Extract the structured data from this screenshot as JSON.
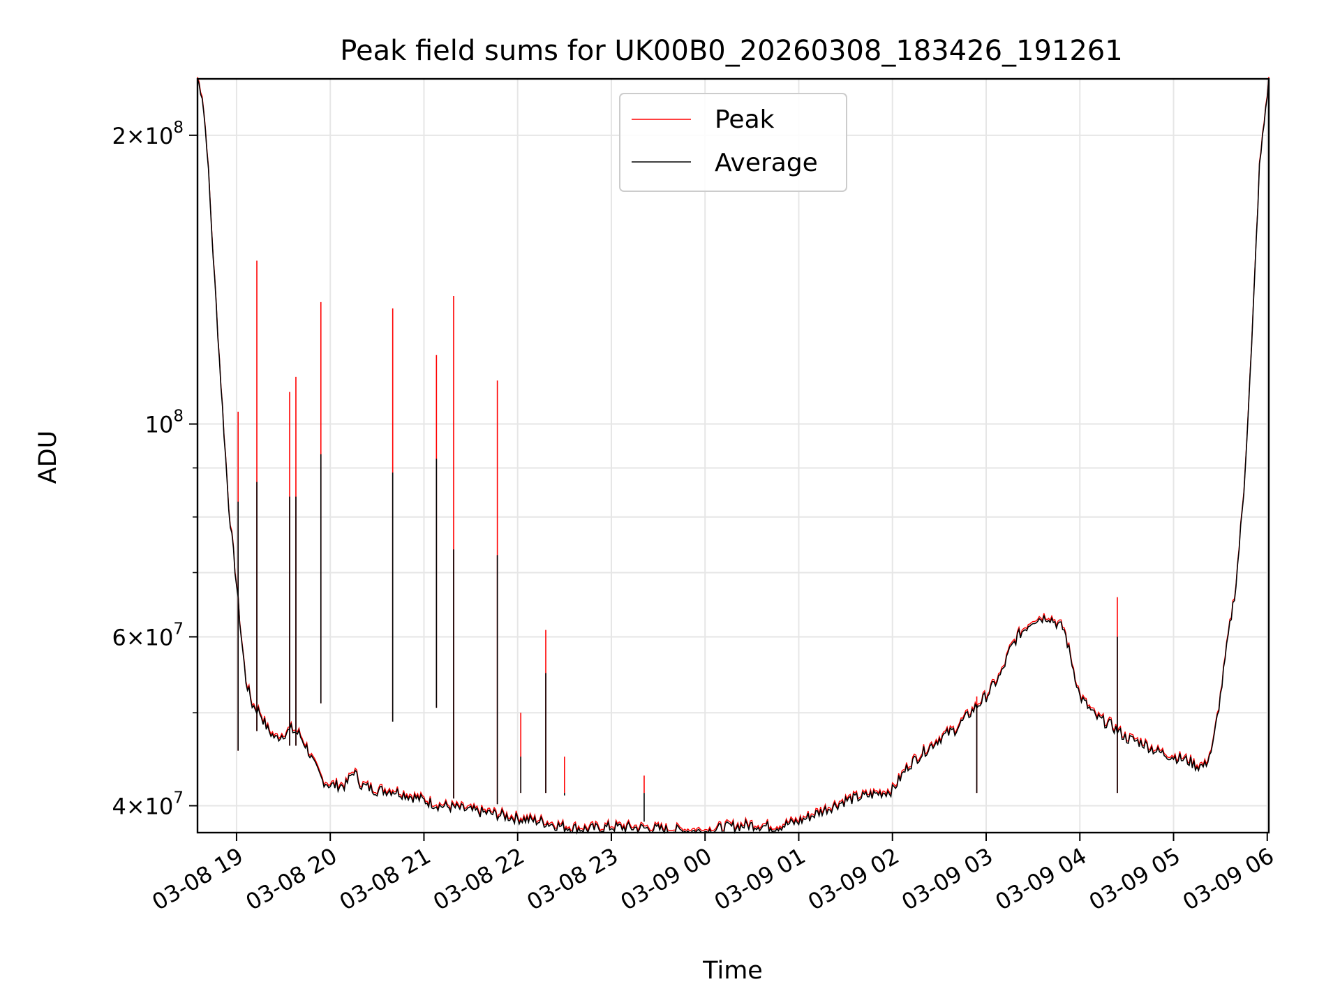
{
  "chart_data": {
    "type": "line",
    "title": "Peak field sums for UK00B0_20260308_183426_191261",
    "xlabel": "Time",
    "ylabel": "ADU",
    "yscale": "log",
    "grid": true,
    "legend_placement": "upper-center",
    "xlim": [
      "2026-03-08 18:35",
      "2026-03-09 06:01"
    ],
    "ylim": [
      37500000,
      229000000
    ],
    "x_ticks": [
      {
        "value": "2026-03-08 19:00",
        "label": "03-08 19"
      },
      {
        "value": "2026-03-08 20:00",
        "label": "03-08 20"
      },
      {
        "value": "2026-03-08 21:00",
        "label": "03-08 21"
      },
      {
        "value": "2026-03-08 22:00",
        "label": "03-08 22"
      },
      {
        "value": "2026-03-08 23:00",
        "label": "03-08 23"
      },
      {
        "value": "2026-03-09 00:00",
        "label": "03-09 00"
      },
      {
        "value": "2026-03-09 01:00",
        "label": "03-09 01"
      },
      {
        "value": "2026-03-09 02:00",
        "label": "03-09 02"
      },
      {
        "value": "2026-03-09 03:00",
        "label": "03-09 03"
      },
      {
        "value": "2026-03-09 04:00",
        "label": "03-09 04"
      },
      {
        "value": "2026-03-09 05:00",
        "label": "03-09 05"
      },
      {
        "value": "2026-03-09 06:00",
        "label": "03-09 06"
      }
    ],
    "y_ticks": [
      {
        "value": 40000000,
        "mant": "4",
        "exp": "7"
      },
      {
        "value": 60000000,
        "mant": "6",
        "exp": "7"
      },
      {
        "value": 100000000,
        "mant": "",
        "exp": "8"
      },
      {
        "value": 200000000,
        "mant": "2",
        "exp": "8"
      }
    ],
    "y_minor_ticks": [
      50000000,
      70000000,
      80000000,
      90000000
    ],
    "series": [
      {
        "name": "Average",
        "color": "#000000",
        "x": [
          "2026-03-08 18:35",
          "2026-03-08 18:38",
          "2026-03-08 18:41",
          "2026-03-08 18:45",
          "2026-03-08 18:50",
          "2026-03-08 18:55",
          "2026-03-08 19:00",
          "2026-03-08 19:03",
          "2026-03-08 19:06",
          "2026-03-08 19:10",
          "2026-03-08 19:15",
          "2026-03-08 19:20",
          "2026-03-08 19:25",
          "2026-03-08 19:30",
          "2026-03-08 19:35",
          "2026-03-08 19:40",
          "2026-03-08 19:45",
          "2026-03-08 19:50",
          "2026-03-08 19:55",
          "2026-03-08 20:00",
          "2026-03-08 20:10",
          "2026-03-08 20:15",
          "2026-03-08 20:20",
          "2026-03-08 20:30",
          "2026-03-08 20:40",
          "2026-03-08 20:50",
          "2026-03-08 21:00",
          "2026-03-08 21:10",
          "2026-03-08 21:20",
          "2026-03-08 21:30",
          "2026-03-08 21:45",
          "2026-03-08 22:00",
          "2026-03-08 22:15",
          "2026-03-08 22:30",
          "2026-03-08 22:45",
          "2026-03-08 23:00",
          "2026-03-08 23:20",
          "2026-03-08 23:40",
          "2026-03-09 00:00",
          "2026-03-09 00:15",
          "2026-03-09 00:30",
          "2026-03-09 00:45",
          "2026-03-09 01:00",
          "2026-03-09 01:15",
          "2026-03-09 01:30",
          "2026-03-09 01:45",
          "2026-03-09 02:00",
          "2026-03-09 02:10",
          "2026-03-09 02:20",
          "2026-03-09 02:30",
          "2026-03-09 02:40",
          "2026-03-09 02:50",
          "2026-03-09 03:00",
          "2026-03-09 03:10",
          "2026-03-09 03:15",
          "2026-03-09 03:20",
          "2026-03-09 03:30",
          "2026-03-09 03:40",
          "2026-03-09 03:45",
          "2026-03-09 03:50",
          "2026-03-09 04:00",
          "2026-03-09 04:10",
          "2026-03-09 04:20",
          "2026-03-09 04:30",
          "2026-03-09 04:40",
          "2026-03-09 04:50",
          "2026-03-09 05:00",
          "2026-03-09 05:10",
          "2026-03-09 05:15",
          "2026-03-09 05:20",
          "2026-03-09 05:25",
          "2026-03-09 05:30",
          "2026-03-09 05:35",
          "2026-03-09 05:40",
          "2026-03-09 05:45",
          "2026-03-09 05:50",
          "2026-03-09 05:55",
          "2026-03-09 06:01"
        ],
        "values": [
          229000000,
          220000000,
          195000000,
          150000000,
          110000000,
          82000000,
          68000000,
          60000000,
          54000000,
          51000000,
          50000000,
          48000000,
          47000000,
          47500000,
          48000000,
          47500000,
          46000000,
          44000000,
          42500000,
          42000000,
          42000000,
          43500000,
          42000000,
          41500000,
          41500000,
          41000000,
          40500000,
          40000000,
          39800000,
          39500000,
          39200000,
          38800000,
          38500000,
          38000000,
          37800000,
          38000000,
          37900000,
          37700000,
          37600000,
          38000000,
          38200000,
          38000000,
          38500000,
          39500000,
          40500000,
          41000000,
          41500000,
          44000000,
          45500000,
          47000000,
          48000000,
          50000000,
          52000000,
          55000000,
          58000000,
          60000000,
          62500000,
          63000000,
          62000000,
          61000000,
          52000000,
          49500000,
          48500000,
          47000000,
          46500000,
          45500000,
          45000000,
          44500000,
          44000000,
          44000000,
          46000000,
          52000000,
          60000000,
          68000000,
          85000000,
          120000000,
          185000000,
          229000000
        ]
      },
      {
        "name": "Peak",
        "color": "#ff0000",
        "spikes": [
          {
            "x": "2026-03-08 19:01",
            "value": 103000000,
            "avg": 83000000
          },
          {
            "x": "2026-03-08 19:13",
            "value": 148000000,
            "avg": 87000000
          },
          {
            "x": "2026-03-08 19:34",
            "value": 108000000,
            "avg": 84000000
          },
          {
            "x": "2026-03-08 19:38",
            "value": 112000000,
            "avg": 84000000
          },
          {
            "x": "2026-03-08 19:54",
            "value": 134000000,
            "avg": 93000000
          },
          {
            "x": "2026-03-08 20:40",
            "value": 132000000,
            "avg": 89000000
          },
          {
            "x": "2026-03-08 21:08",
            "value": 118000000,
            "avg": 92000000
          },
          {
            "x": "2026-03-08 21:19",
            "value": 136000000,
            "avg": 74000000
          },
          {
            "x": "2026-03-08 21:47",
            "value": 111000000,
            "avg": 73000000
          },
          {
            "x": "2026-03-08 22:02",
            "value": 50000000,
            "avg": 45000000
          },
          {
            "x": "2026-03-08 22:18",
            "value": 61000000,
            "avg": 55000000
          },
          {
            "x": "2026-03-08 22:30",
            "value": 45000000,
            "avg": 41000000
          },
          {
            "x": "2026-03-08 23:21",
            "value": 43000000,
            "avg": 38500000
          },
          {
            "x": "2026-03-09 04:24",
            "value": 66000000,
            "avg": 60000000
          },
          {
            "x": "2026-03-09 02:54",
            "value": 52000000,
            "avg": 51000000
          }
        ]
      }
    ]
  }
}
